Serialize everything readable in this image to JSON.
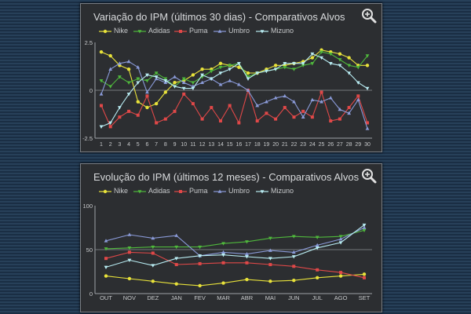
{
  "panels": [
    {
      "title": "Variação do IPM (últimos 30 dias) - Comparativos Alvos",
      "zoom_icon": "zoom-in-icon"
    },
    {
      "title": "Evolução do IPM (últimos 12 meses) - Comparativos Alvos",
      "zoom_icon": "zoom-in-icon"
    }
  ],
  "chart_data": [
    {
      "type": "line",
      "title": "Variação do IPM (últimos 30 dias) - Comparativos Alvos",
      "x": [
        1,
        2,
        3,
        4,
        5,
        6,
        7,
        8,
        9,
        10,
        11,
        12,
        13,
        14,
        15,
        16,
        17,
        18,
        19,
        20,
        21,
        22,
        23,
        24,
        25,
        26,
        27,
        28,
        29,
        30
      ],
      "ylim": [
        -2.5,
        2.5
      ],
      "yticks": [
        "2.5",
        "0",
        "-2.5"
      ],
      "reference_line": 0,
      "grid": false,
      "legend_position": "top",
      "series": [
        {
          "name": "Nike",
          "color": "#e8e23a",
          "values": [
            2.0,
            1.8,
            1.3,
            1.1,
            -0.6,
            -0.9,
            -0.7,
            -0.1,
            0.4,
            0.5,
            0.8,
            1.1,
            1.1,
            1.4,
            1.3,
            1.2,
            0.9,
            0.9,
            1.1,
            1.3,
            1.3,
            1.4,
            1.5,
            1.7,
            2.1,
            2.0,
            1.9,
            1.7,
            1.3,
            1.3
          ]
        },
        {
          "name": "Adidas",
          "color": "#4fb83c",
          "values": [
            0.5,
            0.2,
            0.7,
            0.4,
            0.6,
            0.5,
            0.9,
            0.6,
            0.2,
            0.6,
            0.4,
            0.7,
            1.0,
            1.2,
            1.3,
            1.4,
            0.7,
            0.9,
            1.0,
            1.1,
            1.2,
            1.1,
            1.3,
            1.4,
            2.0,
            1.9,
            1.6,
            1.3,
            1.2,
            1.8
          ]
        },
        {
          "name": "Puma",
          "color": "#e04848",
          "values": [
            -0.8,
            -1.9,
            -1.4,
            -1.1,
            -1.3,
            -0.3,
            -1.7,
            -1.5,
            -1.1,
            -0.2,
            -0.7,
            -1.5,
            -0.9,
            -1.6,
            -0.8,
            -1.7,
            0.0,
            -1.6,
            -1.2,
            -1.5,
            -0.9,
            -1.4,
            -1.1,
            -1.4,
            -0.1,
            -1.6,
            -1.5,
            -0.9,
            -0.3,
            -1.7
          ]
        },
        {
          "name": "Umbro",
          "color": "#8a9ad8",
          "values": [
            -0.2,
            1.1,
            1.4,
            1.5,
            1.2,
            -0.1,
            0.6,
            0.4,
            0.7,
            0.4,
            0.2,
            0.4,
            0.6,
            0.3,
            0.5,
            0.3,
            0.0,
            -0.8,
            -0.6,
            -0.4,
            -0.3,
            -0.6,
            -1.4,
            -0.5,
            -0.6,
            -0.4,
            -1.0,
            -1.2,
            -0.5,
            -2.0
          ]
        },
        {
          "name": "Mizuno",
          "color": "#b8ecf2",
          "values": [
            -1.9,
            -1.7,
            -0.9,
            -0.2,
            0.4,
            0.8,
            0.7,
            0.5,
            0.2,
            0.1,
            0.1,
            0.8,
            0.6,
            0.9,
            1.1,
            1.4,
            0.6,
            0.9,
            1.0,
            1.1,
            1.4,
            1.4,
            1.4,
            1.9,
            1.7,
            1.4,
            1.3,
            0.9,
            0.4,
            0.1
          ]
        }
      ]
    },
    {
      "type": "line",
      "title": "Evolução do IPM (últimos 12 meses) - Comparativos Alvos",
      "categories": [
        "OUT",
        "NOV",
        "DEZ",
        "JAN",
        "FEV",
        "MAR",
        "ABR",
        "MAI",
        "JUN",
        "JUL",
        "AGO",
        "SET"
      ],
      "ylim": [
        0,
        100
      ],
      "yticks": [
        "100",
        "50",
        "0"
      ],
      "reference_line": 50,
      "grid": false,
      "legend_position": "top",
      "series": [
        {
          "name": "Nike",
          "color": "#e8e23a",
          "values": [
            20,
            17,
            14,
            11,
            9,
            12,
            16,
            14,
            15,
            18,
            20,
            22
          ]
        },
        {
          "name": "Adidas",
          "color": "#4fb83c",
          "values": [
            51,
            52,
            53,
            53,
            53,
            57,
            59,
            63,
            65,
            64,
            65,
            72
          ]
        },
        {
          "name": "Puma",
          "color": "#e04848",
          "values": [
            40,
            47,
            46,
            33,
            34,
            35,
            35,
            33,
            31,
            27,
            24,
            18
          ]
        },
        {
          "name": "Umbro",
          "color": "#8a9ad8",
          "values": [
            60,
            67,
            63,
            66,
            43,
            47,
            45,
            49,
            47,
            55,
            62,
            75
          ]
        },
        {
          "name": "Mizuno",
          "color": "#b8ecf2",
          "values": [
            30,
            38,
            32,
            40,
            43,
            44,
            42,
            40,
            42,
            52,
            58,
            78
          ]
        }
      ]
    }
  ]
}
